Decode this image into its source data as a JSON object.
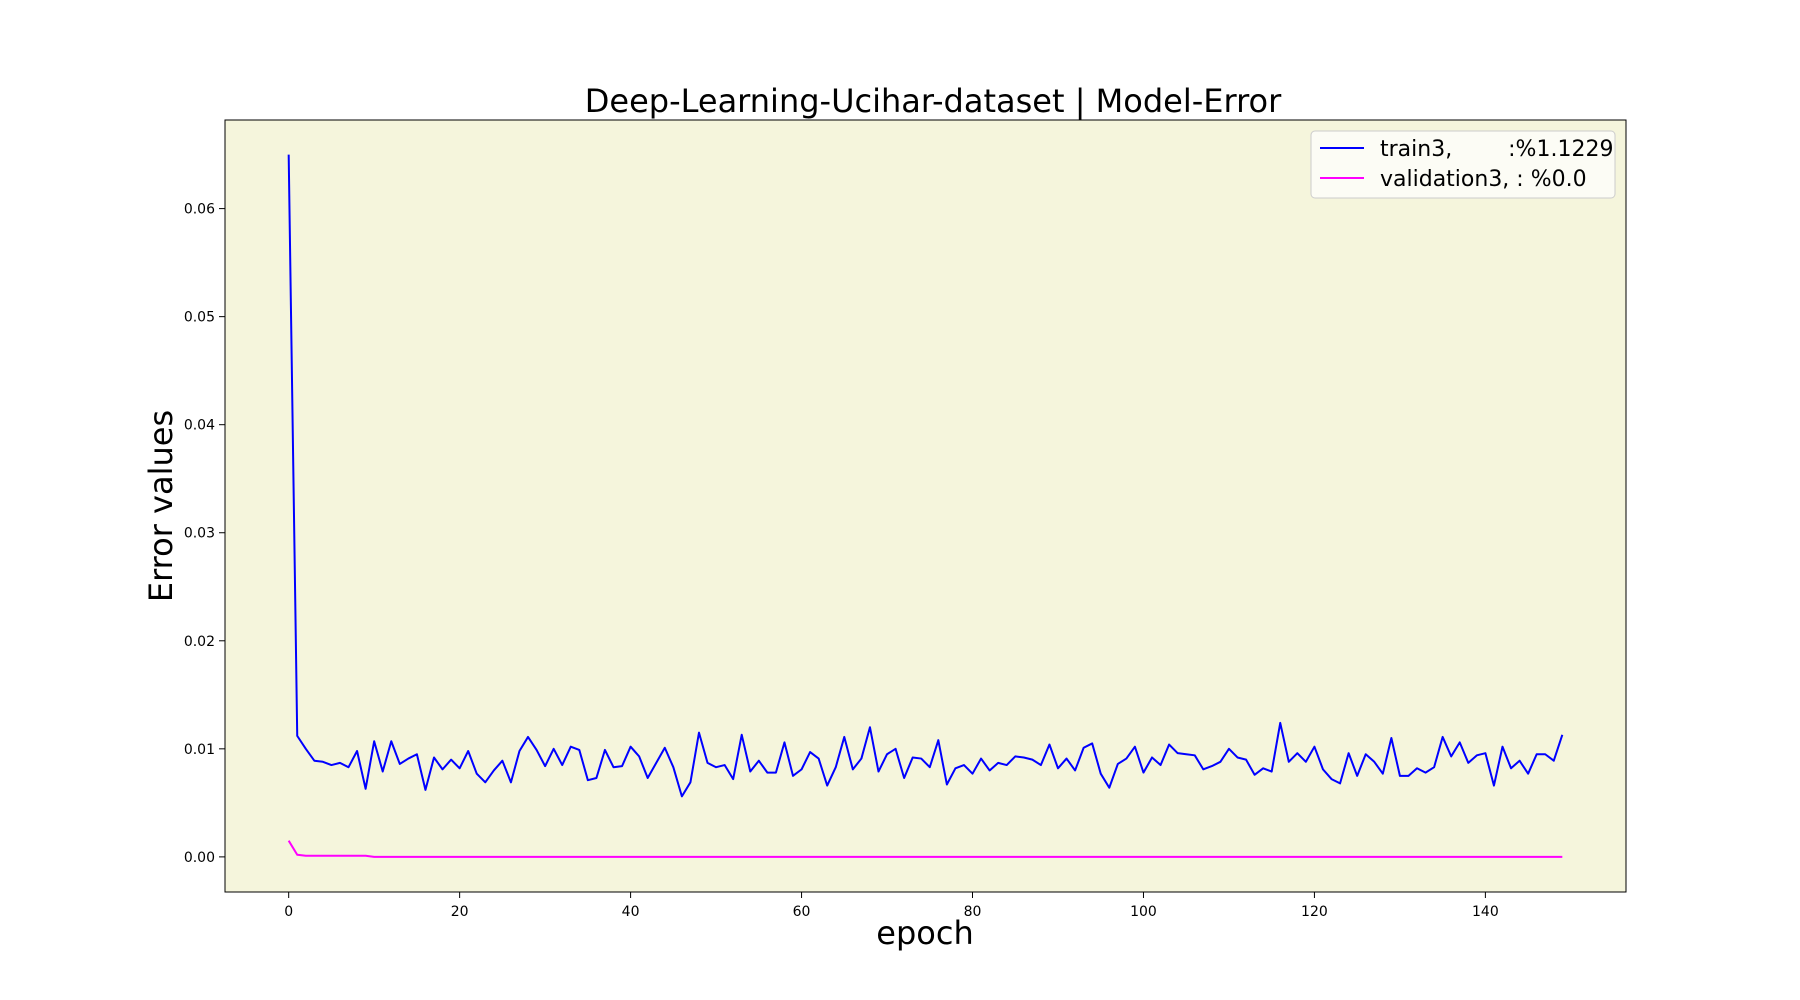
{
  "chart_data": {
    "type": "line",
    "title": "Deep-Learning-Ucihar-dataset  | Model-Error",
    "xlabel": "epoch",
    "ylabel": "Error values",
    "xlim": [
      -7.45,
      156.45
    ],
    "ylim": [
      -0.00325,
      0.0682
    ],
    "xticks": [
      0,
      20,
      40,
      60,
      80,
      100,
      120,
      140
    ],
    "xtick_labels": [
      "0",
      "20",
      "40",
      "60",
      "80",
      "100",
      "120",
      "140"
    ],
    "yticks": [
      0.0,
      0.01,
      0.02,
      0.03,
      0.04,
      0.05,
      0.06
    ],
    "ytick_labels": [
      "0.00",
      "0.01",
      "0.02",
      "0.03",
      "0.04",
      "0.05",
      "0.06"
    ],
    "background": "#f5f5dc",
    "grid": false,
    "legend_position": "top-right",
    "series": [
      {
        "name": "train3,        :%1.1229",
        "color": "#0000ff",
        "values": [
          0.065,
          0.0112,
          0.01,
          0.0089,
          0.0088,
          0.0085,
          0.0087,
          0.0083,
          0.0098,
          0.0063,
          0.0107,
          0.0079,
          0.0107,
          0.0086,
          0.0091,
          0.0095,
          0.0062,
          0.0092,
          0.0081,
          0.009,
          0.0082,
          0.0098,
          0.0077,
          0.0069,
          0.008,
          0.0089,
          0.0069,
          0.0098,
          0.0111,
          0.0099,
          0.0084,
          0.01,
          0.0085,
          0.0102,
          0.0099,
          0.0071,
          0.0073,
          0.0099,
          0.0083,
          0.0084,
          0.0102,
          0.0093,
          0.0073,
          0.0087,
          0.0101,
          0.0083,
          0.0056,
          0.0069,
          0.0115,
          0.0087,
          0.0083,
          0.0085,
          0.0072,
          0.0113,
          0.0079,
          0.0089,
          0.0078,
          0.0078,
          0.0106,
          0.0075,
          0.0081,
          0.0097,
          0.0091,
          0.0066,
          0.0083,
          0.0111,
          0.0081,
          0.0091,
          0.012,
          0.0079,
          0.0095,
          0.01,
          0.0073,
          0.0092,
          0.0091,
          0.0083,
          0.0108,
          0.0067,
          0.0082,
          0.0085,
          0.0077,
          0.0091,
          0.008,
          0.0087,
          0.0085,
          0.0093,
          0.0092,
          0.009,
          0.0085,
          0.0104,
          0.0082,
          0.0091,
          0.008,
          0.0101,
          0.0105,
          0.0077,
          0.0064,
          0.0086,
          0.0091,
          0.0102,
          0.0078,
          0.0092,
          0.0085,
          0.0104,
          0.0096,
          0.0095,
          0.0094,
          0.0081,
          0.0084,
          0.0088,
          0.01,
          0.0092,
          0.009,
          0.0076,
          0.0082,
          0.0079,
          0.0124,
          0.0088,
          0.0096,
          0.0088,
          0.0102,
          0.0081,
          0.0072,
          0.0068,
          0.0096,
          0.0075,
          0.0095,
          0.0088,
          0.0077,
          0.011,
          0.0075,
          0.0075,
          0.0082,
          0.0078,
          0.0083,
          0.0111,
          0.0093,
          0.0106,
          0.0087,
          0.0094,
          0.0096,
          0.0066,
          0.0102,
          0.0082,
          0.0089,
          0.0077,
          0.0095,
          0.0095,
          0.0089,
          0.0113
        ]
      },
      {
        "name": "validation3, : %0.0",
        "color": "#ff00ff",
        "values": [
          0.0015,
          0.0002,
          0.0001,
          0.0001,
          0.0001,
          0.0001,
          0.0001,
          0.0001,
          0.0001,
          0.0001,
          0.0,
          0.0,
          0.0,
          0.0,
          0.0,
          0.0,
          0.0,
          0.0,
          0.0,
          0.0,
          0.0,
          0.0,
          0.0,
          0.0,
          0.0,
          0.0,
          0.0,
          0.0,
          0.0,
          0.0,
          0.0,
          0.0,
          0.0,
          0.0,
          0.0,
          0.0,
          0.0,
          0.0,
          0.0,
          0.0,
          0.0,
          0.0,
          0.0,
          0.0,
          0.0,
          0.0,
          0.0,
          0.0,
          0.0,
          0.0,
          0.0,
          0.0,
          0.0,
          0.0,
          0.0,
          0.0,
          0.0,
          0.0,
          0.0,
          0.0,
          0.0,
          0.0,
          0.0,
          0.0,
          0.0,
          0.0,
          0.0,
          0.0,
          0.0,
          0.0,
          0.0,
          0.0,
          0.0,
          0.0,
          0.0,
          0.0,
          0.0,
          0.0,
          0.0,
          0.0,
          0.0,
          0.0,
          0.0,
          0.0,
          0.0,
          0.0,
          0.0,
          0.0,
          0.0,
          0.0,
          0.0,
          0.0,
          0.0,
          0.0,
          0.0,
          0.0,
          0.0,
          0.0,
          0.0,
          0.0,
          0.0,
          0.0,
          0.0,
          0.0,
          0.0,
          0.0,
          0.0,
          0.0,
          0.0,
          0.0,
          0.0,
          0.0,
          0.0,
          0.0,
          0.0,
          0.0,
          0.0,
          0.0,
          0.0,
          0.0,
          0.0,
          0.0,
          0.0,
          0.0,
          0.0,
          0.0,
          0.0,
          0.0,
          0.0,
          0.0,
          0.0,
          0.0,
          0.0,
          0.0,
          0.0,
          0.0,
          0.0,
          0.0,
          0.0,
          0.0,
          0.0,
          0.0,
          0.0,
          0.0,
          0.0,
          0.0,
          0.0,
          0.0,
          0.0,
          0.0
        ]
      }
    ]
  }
}
